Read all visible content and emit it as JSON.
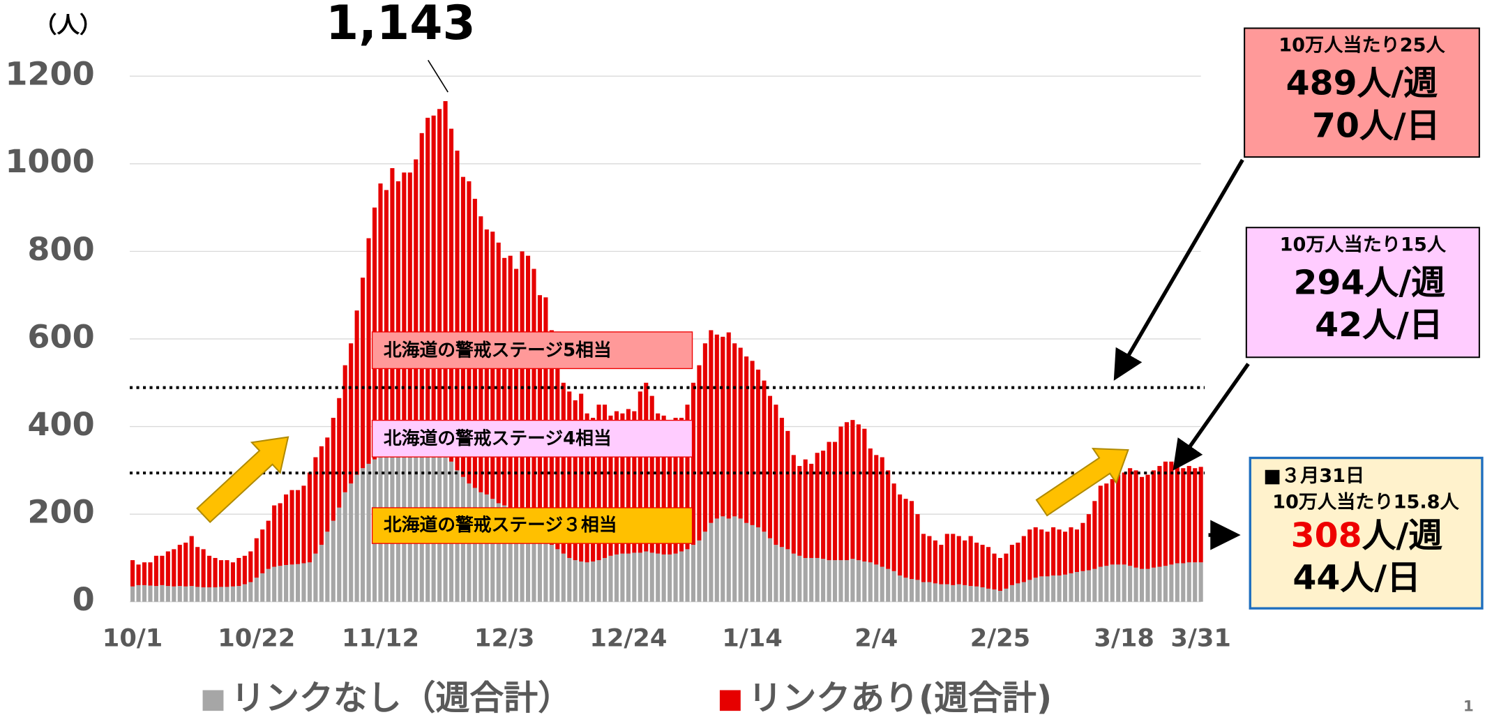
{
  "chart_data": {
    "type": "stacked_bar",
    "y_unit_label": "（人）",
    "categories": [
      "10/1",
      null,
      null,
      null,
      null,
      null,
      null,
      null,
      null,
      null,
      null,
      null,
      null,
      null,
      null,
      null,
      null,
      null,
      null,
      null,
      null,
      "10/22",
      null,
      null,
      null,
      null,
      null,
      null,
      null,
      null,
      null,
      null,
      null,
      null,
      null,
      null,
      null,
      null,
      null,
      null,
      null,
      null,
      "11/12",
      null,
      null,
      null,
      null,
      null,
      null,
      null,
      null,
      null,
      null,
      null,
      null,
      null,
      null,
      null,
      null,
      null,
      null,
      null,
      null,
      "12/3",
      null,
      null,
      null,
      null,
      null,
      null,
      null,
      null,
      null,
      null,
      null,
      null,
      null,
      null,
      null,
      null,
      null,
      null,
      null,
      null,
      "12/24",
      null,
      null,
      null,
      null,
      null,
      null,
      null,
      null,
      null,
      null,
      null,
      null,
      null,
      null,
      null,
      null,
      null,
      null,
      null,
      null,
      "1/14",
      null,
      null,
      null,
      null,
      null,
      null,
      null,
      null,
      null,
      null,
      null,
      null,
      null,
      null,
      null,
      null,
      null,
      null,
      null,
      null,
      "2/4",
      null,
      null,
      null,
      null,
      null,
      null,
      null,
      null,
      null,
      null,
      null,
      null,
      null,
      null,
      null,
      null,
      null,
      null,
      null,
      null,
      "2/25",
      null,
      null,
      null,
      null,
      null,
      null,
      null,
      null,
      null,
      null,
      null,
      null,
      null,
      null,
      null,
      null,
      null,
      null,
      null,
      null,
      "3/18",
      null,
      null,
      null,
      null,
      null,
      null,
      null,
      null,
      null,
      null,
      null,
      null,
      "3/31"
    ],
    "series": [
      {
        "name": "リンクなし（週合計）",
        "color": "#a6a6a6",
        "values": [
          35,
          38,
          38,
          37,
          36,
          38,
          36,
          35,
          36,
          35,
          36,
          34,
          33,
          33,
          33,
          34,
          34,
          35,
          36,
          40,
          45,
          55,
          65,
          75,
          80,
          82,
          84,
          85,
          86,
          88,
          90,
          110,
          130,
          160,
          185,
          215,
          250,
          270,
          290,
          305,
          315,
          325,
          330,
          335,
          335,
          338,
          340,
          340,
          340,
          340,
          340,
          340,
          338,
          335,
          320,
          300,
          285,
          270,
          260,
          250,
          245,
          235,
          225,
          220,
          200,
          180,
          170,
          160,
          150,
          145,
          140,
          130,
          120,
          110,
          100,
          95,
          92,
          90,
          92,
          95,
          100,
          105,
          108,
          110,
          110,
          112,
          112,
          115,
          112,
          110,
          108,
          108,
          110,
          115,
          120,
          130,
          140,
          160,
          180,
          190,
          195,
          190,
          195,
          190,
          180,
          175,
          170,
          160,
          145,
          130,
          125,
          120,
          110,
          105,
          100,
          100,
          100,
          98,
          95,
          95,
          95,
          95,
          98,
          95,
          92,
          90,
          85,
          80,
          75,
          70,
          60,
          55,
          52,
          50,
          45,
          45,
          42,
          40,
          40,
          38,
          40,
          38,
          36,
          35,
          33,
          30,
          28,
          25,
          30,
          38,
          42,
          45,
          50,
          55,
          58,
          58,
          60,
          60,
          62,
          65,
          68,
          70,
          72,
          75,
          80,
          82,
          85,
          85,
          85,
          82,
          78,
          75,
          75,
          78,
          80,
          82,
          85,
          88,
          88,
          90,
          90,
          90
        ]
      },
      {
        "name": "リンクあり(週合計)",
        "color": "#e60000",
        "values": [
          60,
          47,
          52,
          53,
          69,
          67,
          79,
          85,
          94,
          100,
          114,
          91,
          87,
          72,
          67,
          61,
          61,
          55,
          64,
          65,
          70,
          90,
          100,
          110,
          140,
          143,
          161,
          170,
          169,
          177,
          205,
          220,
          225,
          215,
          235,
          250,
          290,
          320,
          375,
          435,
          515,
          575,
          625,
          605,
          655,
          622,
          640,
          640,
          670,
          730,
          765,
          770,
          787,
          808,
          760,
          730,
          685,
          690,
          660,
          630,
          605,
          610,
          595,
          565,
          590,
          580,
          630,
          630,
          610,
          555,
          555,
          490,
          450,
          390,
          380,
          365,
          383,
          340,
          328,
          355,
          350,
          320,
          327,
          320,
          330,
          323,
          368,
          385,
          358,
          320,
          317,
          302,
          310,
          305,
          330,
          370,
          400,
          430,
          440,
          420,
          410,
          425,
          395,
          390,
          380,
          375,
          360,
          345,
          325,
          320,
          295,
          270,
          225,
          205,
          225,
          215,
          240,
          247,
          270,
          270,
          305,
          315,
          317,
          310,
          303,
          260,
          250,
          250,
          225,
          200,
          185,
          180,
          178,
          150,
          110,
          105,
          98,
          90,
          115,
          117,
          110,
          102,
          114,
          100,
          97,
          95,
          82,
          75,
          80,
          92,
          93,
          105,
          115,
          115,
          107,
          102,
          110,
          105,
          98,
          105,
          97,
          110,
          128,
          155,
          185,
          188,
          195,
          205,
          210,
          223,
          222,
          210,
          215,
          222,
          230,
          238,
          235,
          227,
          217,
          220,
          215,
          218
        ]
      }
    ],
    "ylim": [
      0,
      1200
    ],
    "yticks": [
      0,
      200,
      400,
      600,
      800,
      1000,
      1200
    ],
    "grid": true,
    "reference_lines": [
      489,
      294
    ],
    "peak_label": "1,143",
    "stage_labels": [
      "北海道の警戒ステージ5相当",
      "北海道の警戒ステージ4相当",
      "北海道の警戒ステージ３相当"
    ]
  },
  "info_boxes": [
    {
      "lines": [
        "10万人当たり25人",
        "489人/週",
        "70人/日"
      ]
    },
    {
      "lines": [
        "10万人当たり15人",
        "294人/週",
        "42人/日"
      ]
    },
    {
      "lines": [
        "■３月31日",
        "10万人当たり15.8人",
        "308",
        "人/週",
        "44人/日"
      ]
    }
  ],
  "page_number": "1"
}
